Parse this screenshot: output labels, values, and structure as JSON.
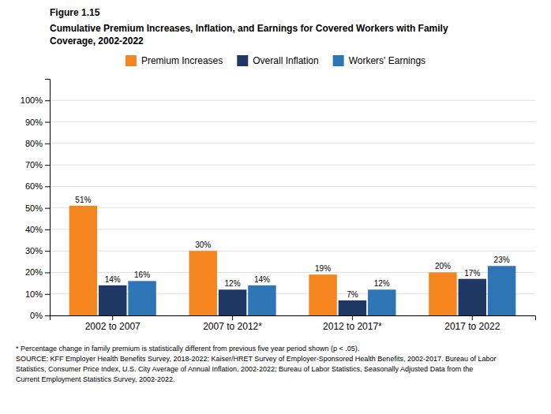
{
  "chart_data": {
    "type": "bar",
    "title": [
      "Cumulative Premium Increases, Inflation, and Earnings for Covered Workers with Family",
      "Coverage, 2002-2022"
    ],
    "annotations": [
      "Figure 1.15",
      "* Percentage change in family premium is statistically different from previous five year period shown (p < .05).",
      "SOURCE: KFF Employer Health Benefits Survey, 2018-2022; Kaiser/HRET Survey of Employer-Sponsored Health Benefits, 2002-2017. Bureau of Labor",
      "Statistics, Consumer Price Index, U.S. City Average of Annual Inflation, 2002-2022; Bureau of Labor Statistics, Seasonally Adjusted Data from the",
      "Current Employment Statistics Survey, 2002-2022."
    ],
    "categories": [
      "2002 to 2007",
      "2007 to 2012*",
      "2012 to 2017*",
      "2017 to 2022"
    ],
    "series": [
      {
        "name": "Premium Increases",
        "color": "#F5861F",
        "values": [
          51,
          30,
          19,
          20
        ],
        "value_labels": [
          "51%",
          "30%",
          "19%",
          "20%"
        ]
      },
      {
        "name": "Overall Inflation",
        "color": "#1F3864",
        "values": [
          14,
          12,
          7,
          17
        ],
        "value_labels": [
          "14%",
          "12%",
          "7%",
          "17%"
        ]
      },
      {
        "name": "Workers' Earnings",
        "color": "#2E75B6",
        "values": [
          16,
          14,
          12,
          23
        ],
        "value_labels": [
          "16%",
          "14%",
          "12%",
          "23%"
        ]
      }
    ],
    "ylim": [
      0,
      110
    ],
    "yticks": [
      {
        "value": 0,
        "label": "0%"
      },
      {
        "value": 10,
        "label": "10%"
      },
      {
        "value": 20,
        "label": "20%"
      },
      {
        "value": 30,
        "label": "30%"
      },
      {
        "value": 40,
        "label": "40%"
      },
      {
        "value": 50,
        "label": "50%"
      },
      {
        "value": 60,
        "label": "60%"
      },
      {
        "value": 70,
        "label": "70%"
      },
      {
        "value": 80,
        "label": "80%"
      },
      {
        "value": 90,
        "label": "90%"
      },
      {
        "value": 100,
        "label": "100%"
      }
    ],
    "grid": true,
    "legend": "top",
    "data_labels": true
  }
}
